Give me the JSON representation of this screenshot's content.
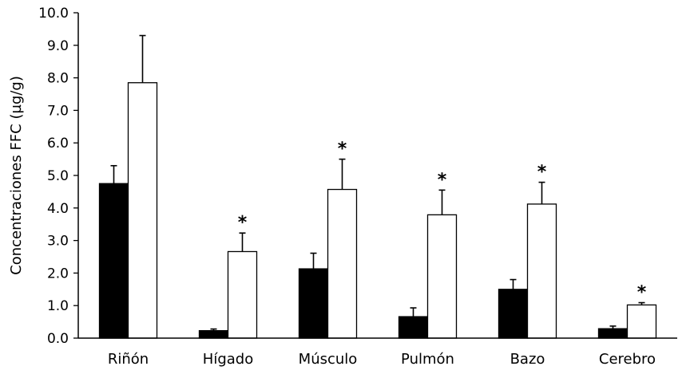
{
  "chart_data": {
    "type": "bar",
    "title": "",
    "xlabel": "",
    "ylabel": "Concentraciones FFC  (µg/g)",
    "ylim": [
      0,
      10
    ],
    "ytick_step": 1,
    "ytick_labels": [
      "0.0",
      "1.0",
      "2.0",
      "3.0",
      "4.0",
      "5.0",
      "6.0",
      "7.0",
      "8.0",
      "9.0",
      "10.0"
    ],
    "categories": [
      "Riñón",
      "Hígado",
      "Músculo",
      "Pulmón",
      "Bazo",
      "Cerebro"
    ],
    "grid": false,
    "legend": "none",
    "series": [
      {
        "fill": "#000000",
        "values": [
          4.75,
          0.23,
          2.13,
          0.66,
          1.5,
          0.29
        ],
        "errors": [
          0.55,
          0.05,
          0.48,
          0.27,
          0.3,
          0.08
        ]
      },
      {
        "fill": "#ffffff",
        "values": [
          7.85,
          2.66,
          4.57,
          3.79,
          4.12,
          1.02
        ],
        "errors": [
          1.45,
          0.57,
          0.93,
          0.76,
          0.67,
          0.07
        ]
      }
    ],
    "significance_marker": "*",
    "significance_flags": [
      false,
      true,
      true,
      true,
      true,
      true
    ]
  }
}
